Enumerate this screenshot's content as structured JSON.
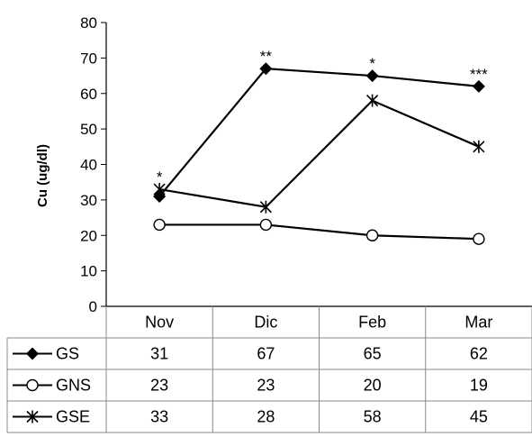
{
  "chart_data": {
    "type": "line",
    "title": "",
    "ylabel": "Cu (ug/dl)",
    "xlabel": "",
    "ylim": [
      0,
      80
    ],
    "yticks": [
      0,
      10,
      20,
      30,
      40,
      50,
      60,
      70,
      80
    ],
    "categories": [
      "Nov",
      "Dic",
      "Feb",
      "Mar"
    ],
    "series": [
      {
        "name": "GS",
        "marker": "diamond",
        "values": [
          31,
          67,
          65,
          62
        ]
      },
      {
        "name": "GNS",
        "marker": "circle",
        "values": [
          23,
          23,
          20,
          19
        ]
      },
      {
        "name": "GSE",
        "marker": "star",
        "values": [
          33,
          28,
          58,
          45
        ]
      }
    ],
    "significance": [
      "*",
      "**",
      "*",
      "***"
    ],
    "grid": false,
    "legend": "data-table"
  }
}
